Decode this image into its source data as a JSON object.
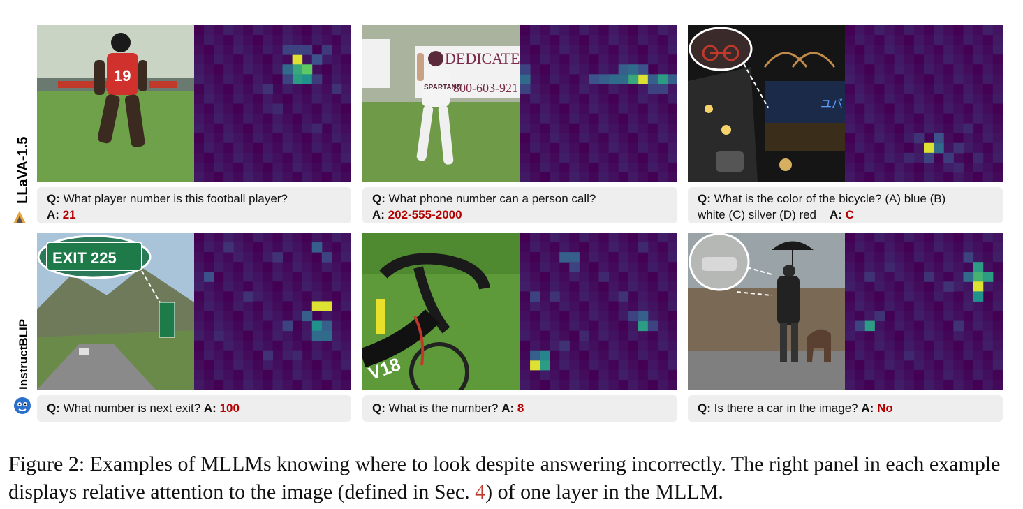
{
  "rows": [
    {
      "model_label": "LLaVA-1.5",
      "panels": [
        {
          "question": "What player number is this football player?",
          "answer": "21",
          "photo_desc": "football player",
          "heat_cells": [
            [
              10,
              3,
              0.95
            ],
            [
              10,
              4,
              0.6
            ],
            [
              11,
              4,
              0.75
            ],
            [
              10,
              5,
              0.55
            ],
            [
              11,
              5,
              0.5
            ],
            [
              9,
              4,
              0.35
            ],
            [
              12,
              3,
              0.25
            ],
            [
              9,
              2,
              0.2
            ],
            [
              11,
              2,
              0.2
            ],
            [
              10,
              2,
              0.2
            ],
            [
              13,
              2,
              0.18
            ],
            [
              9,
              5,
              0.2
            ],
            [
              12,
              5,
              0.18
            ],
            [
              7,
              6,
              0.15
            ],
            [
              14,
              6,
              0.15
            ],
            [
              8,
              8,
              0.12
            ],
            [
              12,
              10,
              0.12
            ]
          ]
        },
        {
          "question": "What phone number can a person call?",
          "answer": "202-555-2000",
          "photo_desc": "baseball player",
          "heat_cells": [
            [
              12,
              5,
              0.95
            ],
            [
              11,
              5,
              0.6
            ],
            [
              9,
              5,
              0.35
            ],
            [
              10,
              5,
              0.35
            ],
            [
              13,
              5,
              0.3
            ],
            [
              14,
              5,
              0.55
            ],
            [
              15,
              5,
              0.3
            ],
            [
              8,
              5,
              0.3
            ],
            [
              7,
              5,
              0.25
            ],
            [
              10,
              4,
              0.3
            ],
            [
              11,
              4,
              0.35
            ],
            [
              12,
              4,
              0.25
            ],
            [
              0,
              5,
              0.35
            ],
            [
              0,
              4,
              0.2
            ],
            [
              0,
              6,
              0.2
            ],
            [
              13,
              6,
              0.2
            ],
            [
              14,
              6,
              0.2
            ]
          ]
        },
        {
          "question": "What is the color of the bicycle? (A) blue (B)",
          "question_line2": "white (C) silver (D) red",
          "answer": "C",
          "photo_desc": "night street",
          "heat_cells": [
            [
              8,
              12,
              0.95
            ],
            [
              9,
              12,
              0.35
            ],
            [
              9,
              11,
              0.25
            ],
            [
              8,
              13,
              0.2
            ],
            [
              7,
              11,
              0.15
            ],
            [
              10,
              13,
              0.18
            ],
            [
              11,
              12,
              0.15
            ],
            [
              12,
              10,
              0.12
            ],
            [
              11,
              14,
              0.12
            ],
            [
              13,
              13,
              0.12
            ],
            [
              6,
              13,
              0.12
            ]
          ]
        }
      ]
    },
    {
      "model_label": "InstructBLIP",
      "panels": [
        {
          "question": "What number is next exit?",
          "answer": "100",
          "photo_desc": "highway exit sign",
          "heat_cells": [
            [
              12,
              7,
              0.95
            ],
            [
              13,
              7,
              0.95
            ],
            [
              11,
              8,
              0.3
            ],
            [
              12,
              9,
              0.5
            ],
            [
              13,
              9,
              0.3
            ],
            [
              12,
              10,
              0.35
            ],
            [
              13,
              10,
              0.35
            ],
            [
              9,
              9,
              0.2
            ],
            [
              12,
              1,
              0.3
            ],
            [
              13,
              2,
              0.2
            ],
            [
              1,
              4,
              0.25
            ],
            [
              3,
              1,
              0.15
            ],
            [
              8,
              2,
              0.15
            ],
            [
              5,
              6,
              0.15
            ],
            [
              2,
              10,
              0.12
            ],
            [
              10,
              12,
              0.12
            ],
            [
              7,
              12,
              0.15
            ]
          ]
        },
        {
          "question": "What is the number?",
          "answer": "8",
          "photo_desc": "bicycle handlebar",
          "heat_cells": [
            [
              1,
              13,
              0.95
            ],
            [
              2,
              13,
              0.55
            ],
            [
              2,
              12,
              0.45
            ],
            [
              1,
              12,
              0.3
            ],
            [
              12,
              9,
              0.55
            ],
            [
              12,
              8,
              0.3
            ],
            [
              11,
              8,
              0.2
            ],
            [
              13,
              9,
              0.2
            ],
            [
              4,
              2,
              0.3
            ],
            [
              5,
              2,
              0.3
            ],
            [
              5,
              3,
              0.2
            ],
            [
              1,
              6,
              0.2
            ],
            [
              3,
              6,
              0.15
            ],
            [
              10,
              6,
              0.15
            ],
            [
              12,
              1,
              0.12
            ],
            [
              8,
              4,
              0.12
            ],
            [
              4,
              11,
              0.15
            ],
            [
              6,
              10,
              0.12
            ]
          ]
        },
        {
          "question": "Is there a car in the image?",
          "answer": "No",
          "photo_desc": "person with umbrella and dog",
          "heat_cells": [
            [
              13,
              3,
              0.55
            ],
            [
              13,
              4,
              0.65
            ],
            [
              14,
              4,
              0.55
            ],
            [
              13,
              5,
              0.95
            ],
            [
              12,
              4,
              0.35
            ],
            [
              13,
              6,
              0.5
            ],
            [
              2,
              9,
              0.55
            ],
            [
              1,
              9,
              0.2
            ],
            [
              3,
              8,
              0.15
            ],
            [
              12,
              2,
              0.2
            ],
            [
              10,
              5,
              0.15
            ],
            [
              8,
              4,
              0.15
            ],
            [
              4,
              3,
              0.12
            ],
            [
              11,
              9,
              0.15
            ],
            [
              6,
              12,
              0.12
            ],
            [
              2,
              4,
              0.15
            ]
          ]
        }
      ]
    }
  ],
  "labels": {
    "q": "Q:",
    "a": "A:"
  },
  "caption": {
    "figure": "Figure 2:",
    "text_before_ref": "Examples of MLLMs knowing where to look despite answering incorrectly. The right panel in each example displays relative attention to the image (defined in Sec.",
    "ref": "4",
    "text_after_ref": ") of one layer in the MLLM."
  },
  "colors": {
    "answer": "#b30000",
    "heat_bg": "#440154",
    "panel_bg": "#eeeeee",
    "sec_ref": "#c0392b"
  }
}
